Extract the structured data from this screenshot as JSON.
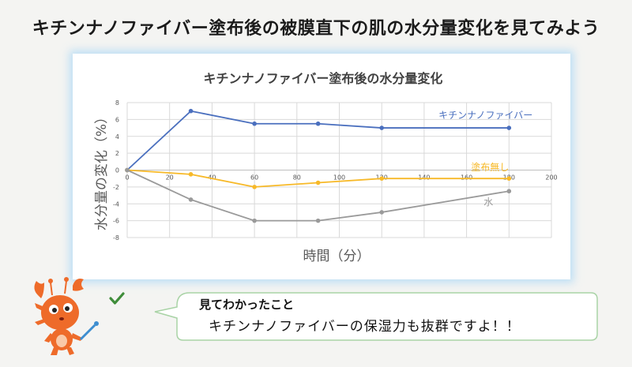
{
  "page": {
    "title": "キチンナノファイバー塗布後の被膜直下の肌の水分量変化を見てみよう"
  },
  "callout": {
    "heading": "見てわかったこと",
    "body": "キチンナノファイバーの保湿力も抜群ですよ！！",
    "icon": "check-icon"
  },
  "mascot": {
    "icon": "crab-mascot-icon"
  },
  "chart_data": {
    "type": "line",
    "title": "キチンナノファイバー塗布後の水分量変化",
    "xlabel": "時間（分）",
    "ylabel": "水分量の変化（%）",
    "xlim": [
      0,
      200
    ],
    "ylim": [
      -8,
      8
    ],
    "x_ticks": [
      0,
      20,
      40,
      60,
      80,
      100,
      120,
      140,
      160,
      180,
      200
    ],
    "y_ticks": [
      8,
      6,
      4,
      2,
      0,
      -2,
      -4,
      -6,
      -8
    ],
    "grid": true,
    "legend": "inline-labels",
    "series": [
      {
        "name": "キチンナノファイバー",
        "color": "#4a6fbe",
        "x": [
          0,
          30,
          60,
          90,
          120,
          180
        ],
        "y": [
          0,
          7,
          5.5,
          5.5,
          5,
          5
        ]
      },
      {
        "name": "塗布無し",
        "color": "#f7b928",
        "x": [
          0,
          30,
          60,
          90,
          120,
          180
        ],
        "y": [
          0,
          -0.5,
          -2,
          -1.5,
          -1,
          -1
        ]
      },
      {
        "name": "水",
        "color": "#9a9a9a",
        "x": [
          0,
          30,
          60,
          90,
          120,
          180
        ],
        "y": [
          0,
          -3.5,
          -6,
          -6,
          -5,
          -2.5
        ]
      }
    ]
  }
}
